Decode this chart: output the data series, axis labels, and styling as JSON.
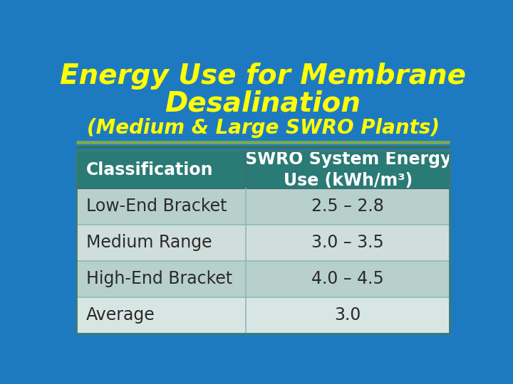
{
  "title_line1": "Energy Use for Membrane",
  "title_line2": "Desalination",
  "subtitle": "(Medium & Large SWRO Plants)",
  "title_color": "#FFFF00",
  "subtitle_color": "#FFFF00",
  "bg_color": "#1E7AC0",
  "header_bg_color": "#2A7A75",
  "header_text_color": "#FFFFFF",
  "row_bg_colors": [
    "#B8D0CC",
    "#D0DEDB",
    "#B8D0CC",
    "#D8E6E3"
  ],
  "row_text_color": "#2A2A2A",
  "col1_header": "Classification",
  "col2_header": "SWRO System Energy\nUse (kWh/m³)",
  "rows": [
    [
      "Low-End Bracket",
      "2.5 – 2.8"
    ],
    [
      "Medium Range",
      "3.0 – 3.5"
    ],
    [
      "High-End Bracket",
      "4.0 – 4.5"
    ],
    [
      "Average",
      "3.0"
    ]
  ],
  "separator_color1": "#7AAA50",
  "separator_color2": "#4A7A30",
  "divider_color": "#5A9A96",
  "title_fontsize": 28,
  "subtitle_fontsize": 20,
  "header_fontsize": 17,
  "row_fontsize": 17
}
